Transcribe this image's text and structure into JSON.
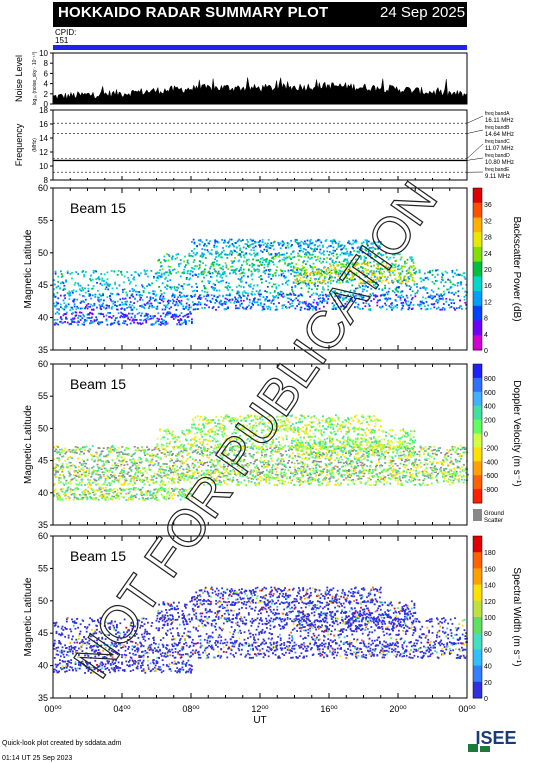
{
  "header": {
    "title": "HOKKAIDO RADAR SUMMARY PLOT",
    "date": "24 Sep 2025",
    "cpid_label": "CPID:",
    "cpid_value": "151",
    "cpid_color": "#2222ee"
  },
  "footer": {
    "line1": "Quick-look plot created by sddata.adm",
    "line2": "01:14 UT 25 Sep 2023"
  },
  "logo_text": "ISEE",
  "watermark_text": "NOT FOR PUBLICATION",
  "chart_data": [
    {
      "type": "area",
      "id": "noise",
      "ylabel": "Noise Level",
      "ylabel_sub": "log₁₀ (noise_sky · 10⁻¹⁰)",
      "ylim": [
        0,
        10
      ],
      "yticks": [
        0,
        2,
        4,
        6,
        8,
        10
      ],
      "x": [
        0,
        2,
        4,
        6,
        8,
        10,
        12,
        14,
        16,
        18,
        20,
        22,
        24
      ],
      "values": [
        1.4,
        1.8,
        2.1,
        2.6,
        3.0,
        3.2,
        3.1,
        3.3,
        3.6,
        3.3,
        2.9,
        2.3,
        1.8
      ]
    },
    {
      "type": "line",
      "id": "frequency",
      "ylabel": "Frequency",
      "ylabel_sub": "(MHz)",
      "ylim": [
        8,
        18
      ],
      "yticks": [
        8,
        10,
        12,
        14,
        16,
        18
      ],
      "bands": [
        {
          "name": "freq bandA",
          "value_label": "16.11 MHz",
          "mhz": 16.11
        },
        {
          "name": "freq bandB",
          "value_label": "14.64 MHz",
          "mhz": 14.64
        },
        {
          "name": "freq bandC",
          "value_label": "11.07 MHz",
          "mhz": 11.07
        },
        {
          "name": "freq bandD",
          "value_label": "10.80 MHz",
          "mhz": 10.8
        },
        {
          "name": "freq bandE",
          "value_label": "9.11 MHz",
          "mhz": 9.11
        }
      ],
      "operating_mhz": 10.8
    },
    {
      "type": "heatmap",
      "id": "power",
      "beam_label": "Beam 15",
      "ylabel": "Magnetic Latitude",
      "ylim": [
        35,
        60
      ],
      "yticks": [
        35,
        40,
        45,
        50,
        55,
        60
      ],
      "colorbar_label": "Backscatter Power (dB)",
      "colorbar_ticks": [
        "0",
        "4",
        "8",
        "12",
        "16",
        "20",
        "24",
        "28",
        "32",
        "36"
      ],
      "colorbar_range": [
        0,
        40
      ],
      "echo_bands": [
        {
          "lat": 45.5,
          "half_width": 2.0,
          "x_start": 0,
          "x_end": 24,
          "level": 14
        },
        {
          "lat": 42.5,
          "half_width": 1.2,
          "x_start": 0,
          "x_end": 24,
          "level": 10
        },
        {
          "lat": 48.5,
          "half_width": 1.6,
          "x_start": 6,
          "x_end": 21,
          "level": 18
        },
        {
          "lat": 51.0,
          "half_width": 1.2,
          "x_start": 8,
          "x_end": 19,
          "level": 13
        },
        {
          "lat": 47.0,
          "half_width": 1.6,
          "x_start": 14,
          "x_end": 21,
          "level": 28
        },
        {
          "lat": 40.0,
          "half_width": 1.0,
          "x_start": 0,
          "x_end": 8,
          "level": 8
        }
      ]
    },
    {
      "type": "heatmap",
      "id": "velocity",
      "beam_label": "Beam 15",
      "ylabel": "Magnetic Latitude",
      "ylim": [
        35,
        60
      ],
      "yticks": [
        35,
        40,
        45,
        50,
        55,
        60
      ],
      "colorbar_label": "Doppler Velocity (m s⁻¹)",
      "colorbar_ticks": [
        "800",
        "600",
        "400",
        "200",
        "0",
        "-200",
        "-400",
        "-600",
        "-800"
      ],
      "colorbar_range": [
        -1000,
        1000
      ],
      "ground_scatter_label": "Ground Scatter",
      "ground_scatter_color": "#888888",
      "ground_bands": [
        {
          "lat": 46.5,
          "x_start": 0,
          "x_end": 24
        },
        {
          "lat": 44.5,
          "x_start": 0,
          "x_end": 24
        },
        {
          "lat": 42.8,
          "x_start": 0,
          "x_end": 24
        },
        {
          "lat": 40.0,
          "x_start": 0,
          "x_end": 8
        }
      ]
    },
    {
      "type": "heatmap",
      "id": "width",
      "beam_label": "Beam 15",
      "ylabel": "Magnetic Latitude",
      "ylim": [
        35,
        60
      ],
      "yticks": [
        35,
        40,
        45,
        50,
        55,
        60
      ],
      "colorbar_label": "Spectral Width (m s⁻¹)",
      "colorbar_ticks": [
        "0",
        "20",
        "40",
        "60",
        "80",
        "100",
        "120",
        "140",
        "160",
        "180"
      ],
      "colorbar_range": [
        0,
        200
      ],
      "xlabel": "UT",
      "xticks": [
        "00⁰⁰",
        "04⁰⁰",
        "08⁰⁰",
        "12⁰⁰",
        "16⁰⁰",
        "20⁰⁰",
        "00⁰⁰"
      ]
    }
  ]
}
